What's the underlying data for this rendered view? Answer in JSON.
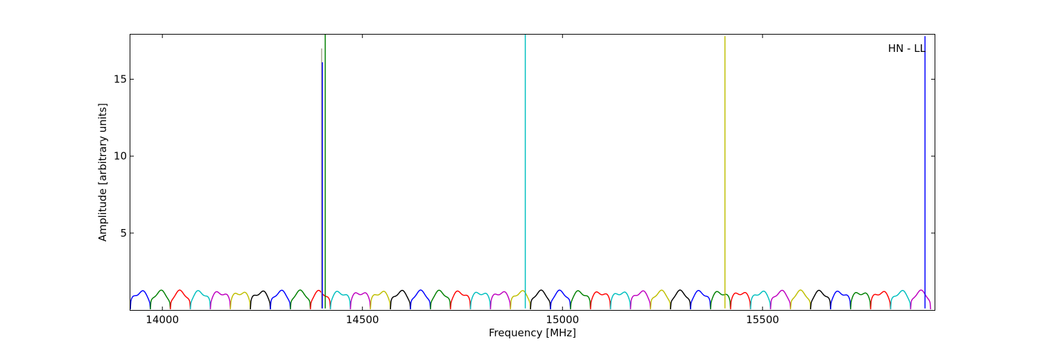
{
  "chart_data": {
    "type": "line",
    "title": "",
    "annotation": "HN - LL",
    "xlabel": "Frequency [MHz]",
    "ylabel": "Amplitude [arbitrary units]",
    "xlim": [
      13920,
      15930
    ],
    "ylim": [
      0,
      17.9
    ],
    "x_ticks": [
      14000,
      14500,
      15000,
      15500
    ],
    "y_ticks": [
      5,
      10,
      15
    ],
    "grid": false,
    "legend": "none",
    "channel_width_mhz": 50,
    "channel_start_mhz": 13920,
    "channel_count": 40,
    "series_colors": [
      "#0000ff",
      "#008000",
      "#ff0000",
      "#00bfbf",
      "#bf00bf",
      "#bfbf00",
      "#000000"
    ],
    "baseline_profile": {
      "edge_level": 0.05,
      "ripple_low": 1.0,
      "ripple_high": 1.3
    },
    "spikes": [
      {
        "x": 14398,
        "y": 17.0,
        "color": "#a8a890"
      },
      {
        "x": 14400,
        "y": 16.1,
        "color": "#0000ff"
      },
      {
        "x": 14407,
        "y": 17.9,
        "color": "#008000"
      },
      {
        "x": 14907,
        "y": 17.9,
        "color": "#00bfbf"
      },
      {
        "x": 15406,
        "y": 17.8,
        "color": "#bfbf00"
      },
      {
        "x": 15906,
        "y": 17.8,
        "color": "#0000ff"
      }
    ]
  }
}
